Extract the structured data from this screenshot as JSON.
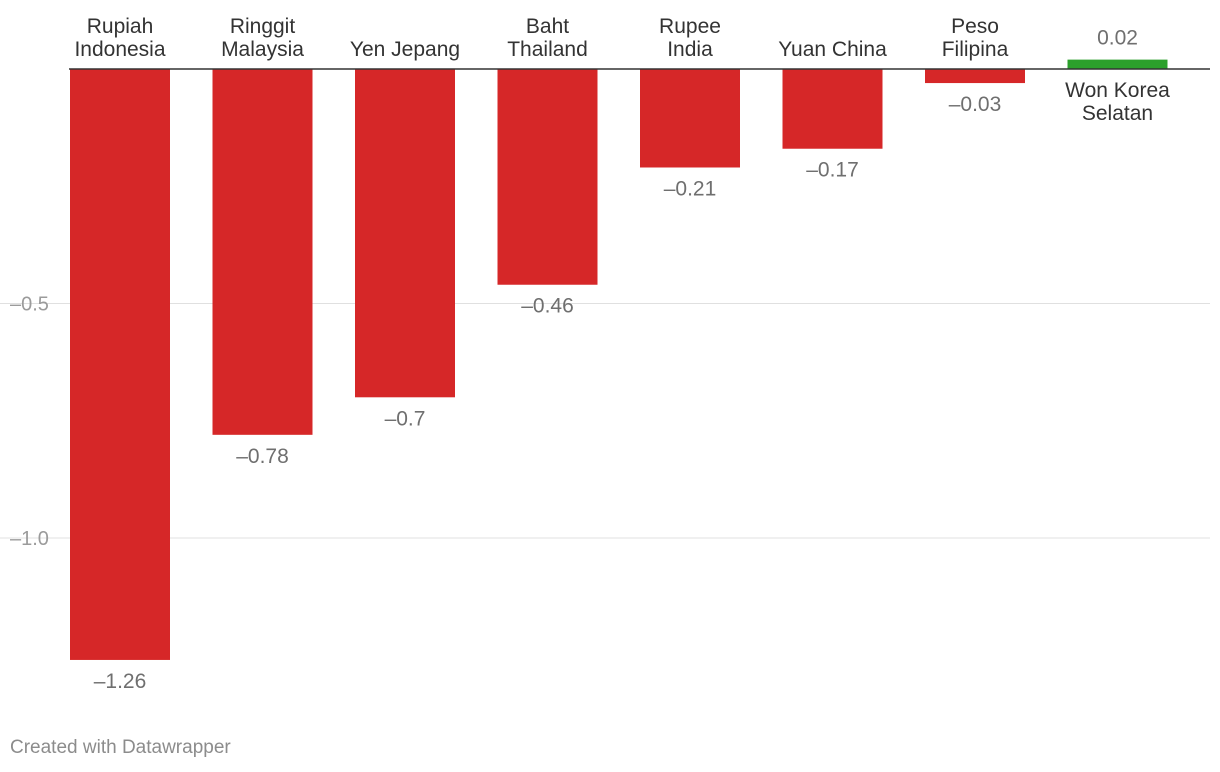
{
  "chart_data": {
    "type": "bar",
    "orientation": "vertical",
    "categories": [
      [
        "Rupiah",
        "Indonesia"
      ],
      [
        "Ringgit",
        "Malaysia"
      ],
      [
        "Yen Jepang"
      ],
      [
        "Baht",
        "Thailand"
      ],
      [
        "Rupee",
        "India"
      ],
      [
        "Yuan China"
      ],
      [
        "Peso",
        "Filipina"
      ],
      [
        "Won Korea",
        "Selatan"
      ]
    ],
    "values": [
      -1.26,
      -0.78,
      -0.7,
      -0.46,
      -0.21,
      -0.17,
      -0.03,
      0.02
    ],
    "value_labels": [
      "–1.26",
      "–0.78",
      "–0.7",
      "–0.46",
      "–0.21",
      "–0.17",
      "–0.03",
      "0.02"
    ],
    "y_ticks": [
      -0.5,
      -1.0
    ],
    "y_tick_labels": [
      "–0.5",
      "–1.0"
    ],
    "ylim": [
      -1.26,
      0.02
    ],
    "grid": true,
    "colors": {
      "negative": "#d62728",
      "positive": "#2ca02c",
      "grid": "#e0e0e0",
      "baseline": "#333333"
    }
  },
  "footer": {
    "credit": "Created with Datawrapper"
  }
}
